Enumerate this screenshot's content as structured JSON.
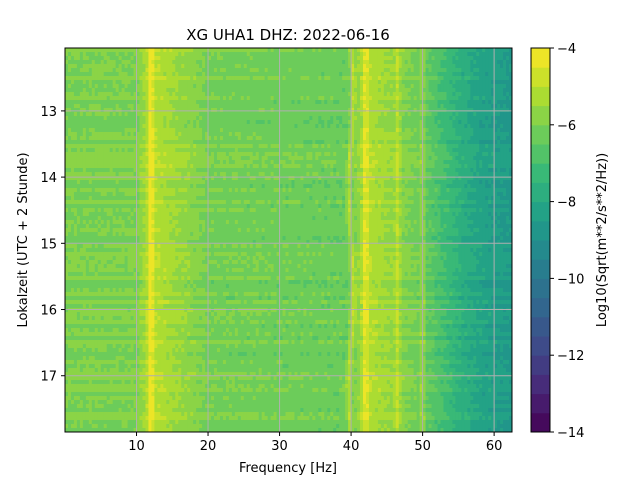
{
  "chart_data": {
    "type": "heatmap",
    "title": "XG UHA1  DHZ: 2022-06-16",
    "xlabel": "Frequency [Hz]",
    "ylabel": "Lokalzeit (UTC + 2 Stunde)",
    "xlim": [
      0,
      62.5
    ],
    "ylim": [
      17.85,
      12.05
    ],
    "xticks": [
      10,
      20,
      30,
      40,
      50,
      60
    ],
    "yticks": [
      13,
      14,
      15,
      16,
      17
    ],
    "grid": true,
    "colorbar": {
      "label": "Log10(Sqrt(m**2/s**2/Hz))",
      "range": [
        -14,
        -4
      ],
      "ticks": [
        -4,
        -6,
        -8,
        -10,
        -12,
        -14
      ],
      "levels": 20,
      "colormap": "viridis"
    },
    "approx_levels": {
      "frequency_hz": [
        0,
        10,
        12,
        20,
        30,
        40,
        42,
        50,
        52,
        55,
        58,
        62.5
      ],
      "log10_psd": [
        -6.0,
        -6.0,
        -5.0,
        -6.1,
        -6.2,
        -6.3,
        -5.0,
        -6.3,
        -6.8,
        -7.6,
        -8.2,
        -8.6
      ]
    },
    "spectral_lines_hz": [
      12,
      40,
      42,
      46.5,
      50
    ]
  }
}
